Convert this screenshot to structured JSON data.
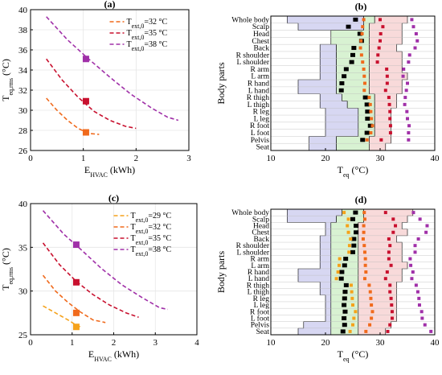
{
  "colors": {
    "c29": "#f5a21b",
    "c32": "#f06a1c",
    "c35": "#c8102e",
    "c38": "#a030a8",
    "band_blue": "#d7d7f2",
    "band_green": "#d8f2d2",
    "band_pink": "#f8dada",
    "black": "#000000",
    "grid": "#e6e6e6"
  },
  "chart_data": [
    {
      "panel": "a",
      "type": "line",
      "title": "(a)",
      "xlabel": "E",
      "xlabel_sub": "HVAC",
      "xlabel_unit": " (kWh)",
      "ylabel": "T",
      "ylabel_sub": "eq,rms",
      "ylabel_unit": " (°C)",
      "xlim": [
        0,
        3
      ],
      "ylim": [
        26,
        40
      ],
      "xticks": [
        "0",
        "1",
        "2",
        "3"
      ],
      "yticks": [
        "26",
        "28",
        "30",
        "32",
        "34",
        "36",
        "38",
        "40"
      ],
      "legend_position": "top-right",
      "series": [
        {
          "name": "T",
          "name_sub": "ext,0",
          "name_rest": "=32 °C",
          "color_key": "c32",
          "x": [
            0.3,
            0.5,
            0.7,
            0.9,
            1.1,
            1.3
          ],
          "y": [
            31.2,
            30.0,
            29.0,
            28.2,
            27.7,
            27.6
          ],
          "marker": [
            1.05,
            27.8
          ]
        },
        {
          "name": "T",
          "name_sub": "ext,0",
          "name_rest": "=35 °C",
          "color_key": "c35",
          "x": [
            0.3,
            0.6,
            0.9,
            1.2,
            1.5,
            1.8,
            2.0
          ],
          "y": [
            35.1,
            33.0,
            31.3,
            29.9,
            29.0,
            28.4,
            28.2
          ],
          "marker": [
            1.05,
            30.9
          ]
        },
        {
          "name": "T",
          "name_sub": "ext,0",
          "name_rest": "=38 °C",
          "color_key": "c38",
          "x": [
            0.3,
            0.7,
            1.1,
            1.5,
            1.9,
            2.3,
            2.6,
            2.8
          ],
          "y": [
            39.3,
            37.0,
            35.1,
            33.3,
            31.6,
            30.2,
            29.3,
            29.0
          ],
          "marker": [
            1.05,
            35.1
          ]
        }
      ]
    },
    {
      "panel": "b",
      "type": "scatter",
      "title": "(b)",
      "xlabel": "T",
      "xlabel_sub": "eq",
      "xlabel_unit": " (°C)",
      "ylabel": "Body parts",
      "xlim": [
        10,
        40
      ],
      "xticks": [
        "10",
        "20",
        "30",
        "40"
      ],
      "categories": [
        "Whole body",
        "Scalp",
        "Head",
        "Chest",
        "Back",
        "R shoulder",
        "L shoulder",
        "R arm",
        "L arm",
        "R hand",
        "L hand",
        "R thigh",
        "L thigh",
        "R leg",
        "L leg",
        "R foot",
        "L foot",
        "Pelvis",
        "Seat"
      ],
      "bands": {
        "blue_left": [
          13,
          15,
          22,
          21,
          19,
          19,
          19,
          19,
          19,
          15,
          15,
          19,
          19,
          20,
          20,
          20,
          20,
          17,
          17
        ],
        "blue_right": [
          27,
          27,
          21,
          21,
          22,
          22,
          22,
          22,
          22,
          22,
          22,
          23,
          24,
          26,
          26,
          26,
          26,
          22,
          22
        ],
        "green_right": [
          29,
          28,
          28,
          28,
          28,
          28,
          28,
          28,
          28,
          28,
          28,
          29,
          29,
          29,
          29,
          29,
          29,
          28,
          28
        ],
        "pink_right": [
          35,
          34,
          34,
          34,
          33,
          34,
          34,
          34,
          35,
          34,
          34,
          33,
          33,
          32,
          32,
          32,
          32,
          32,
          31
        ]
      },
      "series": [
        {
          "name": "black",
          "color_key": "black",
          "values": [
            25.5,
            24.2,
            26.3,
            26.6,
            25.2,
            25.0,
            24.8,
            23.8,
            23.4,
            23.0,
            22.9,
            27.3,
            27.6,
            27.7,
            27.7,
            28.2,
            27.6,
            26.8,
            null
          ]
        },
        {
          "name": "c32",
          "color_key": "c32",
          "values": [
            27.0,
            26.8,
            26.7,
            26.5,
            26.4,
            26.6,
            26.8,
            27.0,
            27.1,
            27.2,
            27.1,
            28.0,
            28.2,
            28.3,
            28.4,
            28.6,
            28.3,
            27.6,
            null
          ]
        },
        {
          "name": "c35",
          "color_key": "c35",
          "values": [
            30.0,
            30.5,
            30.1,
            30.0,
            29.8,
            29.6,
            29.5,
            31.2,
            31.3,
            31.3,
            31.0,
            31.6,
            31.7,
            31.8,
            31.8,
            31.9,
            31.9,
            30.2,
            null
          ]
        },
        {
          "name": "c38",
          "color_key": "c38",
          "values": [
            35.8,
            36.1,
            36.6,
            36.8,
            36.4,
            35.4,
            35.2,
            34.3,
            34.2,
            35.0,
            34.8,
            34.6,
            34.5,
            34.9,
            35.0,
            35.3,
            35.2,
            35.2,
            null
          ]
        }
      ]
    },
    {
      "panel": "c",
      "type": "line",
      "title": "(c)",
      "xlabel": "E",
      "xlabel_sub": "HVAC",
      "xlabel_unit": " (kWh)",
      "ylabel": "T",
      "ylabel_sub": "eq,rms",
      "ylabel_unit": " (°C)",
      "xlim": [
        0,
        4
      ],
      "ylim": [
        25,
        40
      ],
      "xticks": [
        "0",
        "1",
        "2",
        "3",
        "4"
      ],
      "yticks": [
        "25",
        "30",
        "35",
        "40"
      ],
      "legend_position": "top-right",
      "series": [
        {
          "name": "T",
          "name_sub": "ext,0",
          "name_rest": "=29 °C",
          "color_key": "c29",
          "x": [
            0.3,
            0.6,
            0.9,
            1.1,
            1.2
          ],
          "y": [
            28.3,
            27.5,
            26.7,
            26.1,
            25.9
          ],
          "marker": [
            1.1,
            25.9
          ]
        },
        {
          "name": "T",
          "name_sub": "ext,0",
          "name_rest": "=32 °C",
          "color_key": "c32",
          "x": [
            0.3,
            0.6,
            0.9,
            1.2,
            1.5,
            1.8
          ],
          "y": [
            31.8,
            30.0,
            28.7,
            27.6,
            26.7,
            26.4
          ],
          "marker": [
            1.1,
            27.5
          ]
        },
        {
          "name": "T",
          "name_sub": "ext,0",
          "name_rest": "=35 °C",
          "color_key": "c35",
          "x": [
            0.3,
            0.7,
            1.1,
            1.5,
            1.9,
            2.3,
            2.6
          ],
          "y": [
            35.5,
            33.0,
            31.1,
            29.6,
            28.4,
            27.5,
            27.0
          ],
          "marker": [
            1.1,
            31.0
          ]
        },
        {
          "name": "T",
          "name_sub": "ext,0",
          "name_rest": "=38 °C",
          "color_key": "c38",
          "x": [
            0.3,
            0.8,
            1.2,
            1.7,
            2.2,
            2.7,
            3.1,
            3.3
          ],
          "y": [
            39.2,
            36.5,
            34.8,
            32.6,
            30.7,
            29.2,
            28.1,
            27.9
          ],
          "marker": [
            1.1,
            35.3
          ]
        }
      ]
    },
    {
      "panel": "d",
      "type": "scatter",
      "title": "(d)",
      "xlabel": "T",
      "xlabel_sub": "eq",
      "xlabel_unit": " (°C)",
      "ylabel": "Body parts",
      "xlim": [
        10,
        40
      ],
      "xticks": [
        "10",
        "20",
        "30",
        "40"
      ],
      "categories": [
        "Whole body",
        "Scalp",
        "Head",
        "Chest",
        "Back",
        "R shoulder",
        "L shoulder",
        "R arm",
        "L arm",
        "R hand",
        "L hand",
        "R thigh",
        "L thigh",
        "R leg",
        "L leg",
        "R foot",
        "L foot",
        "Pelvis",
        "Seat"
      ],
      "bands": {
        "blue_left": [
          13,
          13,
          20,
          20,
          19,
          19,
          19,
          19,
          19,
          15,
          15,
          19,
          19,
          20,
          20,
          20,
          20,
          16,
          15
        ],
        "blue_right": [
          23,
          22,
          21,
          21,
          21,
          21,
          21,
          21,
          21,
          21,
          21,
          21,
          21,
          21,
          21,
          21,
          21,
          21,
          21
        ],
        "green_right": [
          27,
          27,
          26,
          26,
          26,
          26,
          26,
          26,
          26,
          26,
          26,
          26,
          26,
          26,
          26,
          26,
          26,
          26,
          26
        ],
        "pink_right": [
          36,
          35,
          34,
          35,
          33,
          34,
          34,
          34,
          35,
          34,
          34,
          33,
          33,
          33,
          33,
          33,
          33,
          32,
          31
        ]
      },
      "series": [
        {
          "name": "black",
          "color_key": "black",
          "values": [
            25.5,
            25.0,
            25.6,
            25.6,
            25.2,
            25.2,
            25.0,
            23.7,
            23.5,
            23.0,
            22.9,
            23.8,
            23.6,
            23.5,
            23.4,
            23.6,
            23.4,
            23.5,
            23.2
          ]
        },
        {
          "name": "c29",
          "color_key": "c29",
          "values": [
            23.4,
            24.2,
            24.0,
            24.2,
            24.6,
            24.4,
            24.3,
            22.6,
            22.5,
            22.3,
            22.0,
            24.7,
            24.8,
            24.9,
            25.0,
            25.5,
            25.2,
            25.0,
            24.5
          ]
        },
        {
          "name": "c32",
          "color_key": "c32",
          "values": [
            27.1,
            27.2,
            27.0,
            27.0,
            26.9,
            27.1,
            27.2,
            27.3,
            27.3,
            27.4,
            27.2,
            28.0,
            28.2,
            28.3,
            28.4,
            28.6,
            28.4,
            28.1,
            27.4
          ]
        },
        {
          "name": "c35",
          "color_key": "c35",
          "values": [
            31.0,
            32.4,
            32.8,
            32.4,
            31.6,
            31.8,
            31.6,
            31.6,
            32.0,
            31.3,
            31.0,
            31.8,
            31.8,
            32.0,
            32.1,
            32.2,
            32.2,
            31.8,
            31.4
          ]
        },
        {
          "name": "c38",
          "color_key": "c38",
          "values": [
            36.1,
            37.3,
            38.6,
            38.4,
            37.0,
            36.4,
            36.4,
            35.5,
            35.6,
            36.0,
            35.8,
            36.6,
            36.9,
            37.1,
            37.2,
            37.6,
            37.7,
            38.2,
            39.3
          ]
        }
      ]
    }
  ]
}
